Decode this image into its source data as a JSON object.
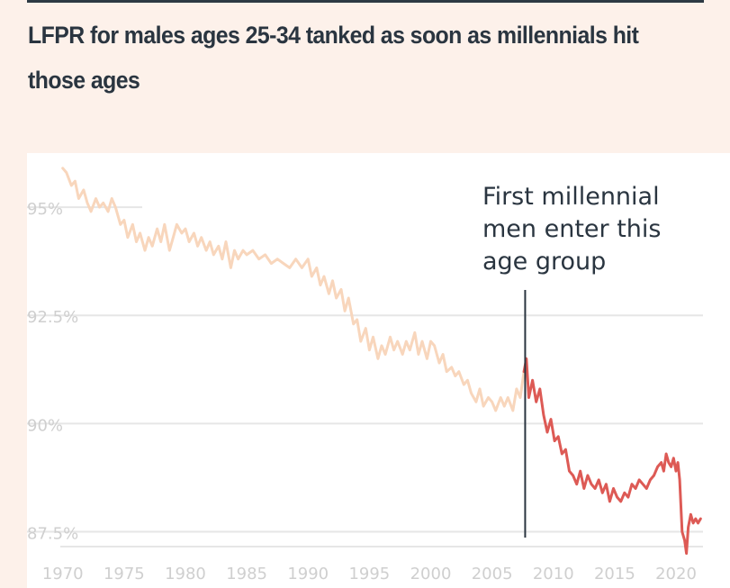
{
  "chart_data": {
    "type": "line",
    "title": "LFPR for males ages 25-34 tanked as soon as millennials hit those ages",
    "xlabel": "",
    "ylabel": "",
    "x_ticks": [
      "1970",
      "1975",
      "1980",
      "1985",
      "1990",
      "1995",
      "2000",
      "2005",
      "2010",
      "2015",
      "2020"
    ],
    "y_ticks": [
      "87.5%",
      "90%",
      "92.5%",
      "95%"
    ],
    "xlim": [
      1969.8,
      2022.2
    ],
    "ylim": [
      86.2,
      96.25
    ],
    "grid": "horizontal",
    "annotation": {
      "x": 2007.7,
      "lines": [
        "First millennial",
        "men enter this",
        "age group"
      ]
    },
    "colors": {
      "before": "#f8d6bc",
      "after": "#dd5a55",
      "annotation_line": "#2a3540",
      "grid": "#e6e6e6"
    },
    "series": [
      {
        "x": [
          1970.0,
          1970.3,
          1970.7,
          1971.0,
          1971.3,
          1971.7,
          1972.0,
          1972.3,
          1972.7,
          1973.0,
          1973.3,
          1973.7,
          1974.0,
          1974.3,
          1974.7,
          1975.0,
          1975.3,
          1975.7,
          1976.0,
          1976.3,
          1976.7,
          1977.0,
          1977.3,
          1977.7,
          1978.0,
          1978.3,
          1978.7,
          1979.0,
          1979.3,
          1979.7,
          1980.0,
          1980.3,
          1980.7,
          1981.0,
          1981.3,
          1981.7,
          1982.0,
          1982.3,
          1982.7,
          1983.0,
          1983.3,
          1983.7,
          1984.0,
          1984.3,
          1984.7,
          1985.0,
          1985.5,
          1986.0,
          1986.5,
          1987.0,
          1987.5,
          1988.0,
          1988.5,
          1989.0,
          1989.5,
          1990.0,
          1990.3,
          1990.7,
          1991.0,
          1991.3,
          1991.7,
          1992.0,
          1992.3,
          1992.7,
          1993.0,
          1993.3,
          1993.7,
          1994.0,
          1994.3,
          1994.7,
          1995.0,
          1995.3,
          1995.7,
          1996.0,
          1996.3,
          1996.7,
          1997.0,
          1997.3,
          1997.7,
          1998.0,
          1998.3,
          1998.7,
          1999.0,
          1999.3,
          1999.7,
          2000.0,
          2000.3,
          2000.7,
          2001.0,
          2001.3,
          2001.7,
          2002.0,
          2002.3,
          2002.7,
          2003.0,
          2003.3,
          2003.7,
          2004.0,
          2004.3,
          2004.7,
          2005.0,
          2005.3,
          2005.7,
          2006.0,
          2006.3,
          2006.7,
          2007.0,
          2007.3,
          2007.6
        ],
        "values": [
          95.9,
          95.8,
          95.5,
          95.6,
          95.2,
          95.4,
          95.1,
          94.9,
          95.2,
          95.0,
          95.1,
          94.9,
          95.2,
          95.0,
          94.6,
          94.7,
          94.3,
          94.6,
          94.2,
          94.4,
          94.0,
          94.3,
          94.1,
          94.5,
          94.2,
          94.6,
          94.0,
          94.3,
          94.6,
          94.4,
          94.5,
          94.2,
          94.4,
          94.1,
          94.3,
          94.0,
          94.2,
          93.9,
          94.1,
          93.8,
          94.2,
          93.6,
          94.0,
          93.8,
          94.0,
          93.9,
          94.0,
          93.8,
          93.9,
          93.7,
          93.8,
          93.7,
          93.6,
          93.8,
          93.6,
          93.8,
          93.4,
          93.6,
          93.2,
          93.4,
          93.0,
          93.3,
          92.9,
          93.1,
          92.6,
          92.9,
          92.3,
          92.4,
          91.9,
          92.2,
          91.7,
          92.0,
          91.5,
          91.8,
          91.6,
          92.0,
          91.7,
          91.9,
          91.6,
          91.9,
          91.7,
          92.1,
          91.6,
          91.9,
          91.5,
          91.9,
          91.8,
          91.4,
          91.6,
          91.2,
          91.3,
          91.1,
          91.2,
          90.9,
          91.0,
          90.7,
          90.5,
          90.8,
          90.4,
          90.6,
          90.5,
          90.3,
          90.6,
          90.4,
          90.6,
          90.3,
          90.8,
          90.6,
          91.2
        ],
        "color": "#f8d6bc"
      },
      {
        "x": [
          2007.6,
          2007.8,
          2008.0,
          2008.3,
          2008.6,
          2008.9,
          2009.2,
          2009.5,
          2009.8,
          2010.1,
          2010.4,
          2010.7,
          2011.0,
          2011.3,
          2011.6,
          2011.9,
          2012.2,
          2012.5,
          2012.8,
          2013.1,
          2013.4,
          2013.7,
          2014.0,
          2014.3,
          2014.6,
          2014.9,
          2015.2,
          2015.5,
          2015.8,
          2016.1,
          2016.4,
          2016.7,
          2017.0,
          2017.3,
          2017.6,
          2017.9,
          2018.2,
          2018.5,
          2018.8,
          2019.0,
          2019.2,
          2019.4,
          2019.6,
          2019.8,
          2020.0,
          2020.15,
          2020.3,
          2020.5,
          2020.7,
          2020.85,
          2021.0,
          2021.2,
          2021.4,
          2021.6,
          2021.8,
          2022.0
        ],
        "values": [
          91.2,
          91.5,
          90.6,
          91.0,
          90.5,
          90.8,
          90.2,
          89.8,
          90.1,
          89.6,
          89.7,
          89.3,
          89.4,
          88.9,
          88.8,
          88.6,
          88.9,
          88.5,
          88.8,
          88.6,
          88.5,
          88.7,
          88.4,
          88.6,
          88.2,
          88.5,
          88.3,
          88.2,
          88.4,
          88.3,
          88.6,
          88.5,
          88.7,
          88.6,
          88.5,
          88.7,
          88.8,
          89.0,
          89.1,
          88.9,
          89.3,
          89.1,
          89.0,
          89.2,
          88.9,
          89.1,
          88.7,
          87.5,
          87.3,
          87.0,
          87.6,
          87.9,
          87.7,
          87.8,
          87.7,
          87.8
        ],
        "color": "#dd5a55"
      }
    ]
  }
}
